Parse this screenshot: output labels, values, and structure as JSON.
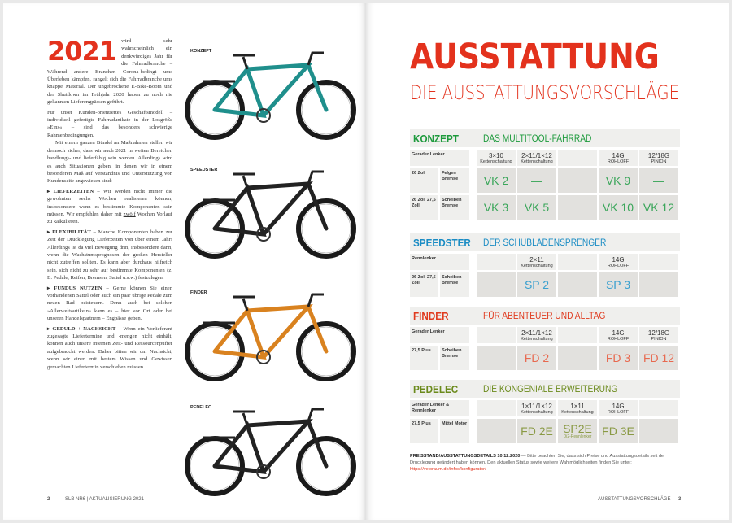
{
  "left": {
    "year": "2021",
    "paragraphs": [
      "wird sehr wahrscheinlich ein denkwürdiges Jahr für die Fahrradbranche – Während andere Branchen Corona-bedingt ums Überleben kämpfen, rangelt sich die Fahrradbranche ums knappe Material. Der ungebrochene E-Bike-Boom und der Shutdown im Frühjahr 2020 haben zu noch nie gekannten Lieferengpässen geführt.",
      "Für unser Kunden-orientiertes Geschäftsmodell – individuell gefertigte Fahrradunikate in der Losgröße »Eins« – sind das besonders schwierige Rahmenbedingungen.",
      "Mit einem ganzen Bündel an Maßnahmen stellen wir dennoch sicher, dass wir auch 2021 in weiten Bereichen handlungs- und lieferfähig sein werden. Allerdings wird es auch Situationen geben, in denen wir in einem besonderen Maß auf Verständnis und Unterstützung von Kundenseite angewiesen sind:"
    ],
    "bullets": [
      {
        "head": "▸ LIEFERZEITEN",
        "text": " – Wir werden nicht immer die gewohnten sechs Wochen realisieren können, insbesondere wenn es bestimmte Komponenten sein müssen. Wir empfehlen daher mit ",
        "u": "zwölf",
        "after": " Wochen Vorlauf zu kalkulieren."
      },
      {
        "head": "▸ FLEXIBILITÄT",
        "text": " – Manche Komponenten haben zur Zeit der Drucklegung Lieferzeiten von über einem Jahr! Allerdings ist da viel Bewegung drin, insbesondere dann, wenn die Wachstumsprognosen der großen Hersteller nicht zutreffen sollten. Es kann aber durchaus hilfreich sein, sich nicht zu sehr auf bestimmte Komponenten (z. B. Pedale, Reifen, Bremsen, Sattel u.s.w.) festzulegen."
      },
      {
        "head": "▸ FUNDUS NUTZEN",
        "text": " – Gerne können Sie einen vorhandenen Sattel oder auch ein paar übrige Pedale zum neuen Rad beisteuern. Denn auch bei solchen »Allerweltsartikeln« kann es – hier vor Ort oder bei unseren Handelspartnern – Engpässe geben."
      },
      {
        "head": "▸ GEDULD + NACHSICHT",
        "text": " – Wenn ein Vorlieferant zugesagte Liefertermine und -mengen nicht einhält, können auch unsere internen Zeit- und Ressourcenpuffer aufgebraucht werden. Daher bitten wir um Nachsicht, wenn wir einen mit bestem Wissen und Gewissen gemachten Liefertermin verschieben müssen."
      }
    ],
    "bikes": [
      {
        "label": "KONZEPT",
        "color": "#1f8f8c"
      },
      {
        "label": "SPEEDSTER",
        "color": "#222222"
      },
      {
        "label": "FINDER",
        "color": "#d9821f"
      },
      {
        "label": "PEDELEC",
        "color": "#222222"
      }
    ],
    "footer_page": "2",
    "footer_text": "SLB NR6 | AKTUALISIERUNG 2021"
  },
  "right": {
    "title": "AUSSTATTUNG",
    "subtitle": "DIE AUSSTATTUNGSVORSCHLÄGE",
    "sections": [
      {
        "name": "KONZEPT",
        "tagline": "DAS MULTITOOL-FAHRRAD",
        "color": "#1d9a3c",
        "code_color": "#3aa65a",
        "header": {
          "label": "Gerader Lenker",
          "cols": [
            [
              "3×10",
              "Kettenschaltung"
            ],
            [
              "2×11/1×12",
              "Kettenschaltung"
            ],
            [
              "",
              ""
            ],
            [
              "14G",
              "ROHLOFF"
            ],
            [
              "12/18G",
              "PINION"
            ]
          ]
        },
        "rows": [
          {
            "a": "26 Zoll",
            "b": "Felgen Bremse",
            "cells": [
              "VK 2",
              "—",
              "",
              "VK 9",
              "—"
            ]
          },
          {
            "a": "26 Zoll 27,5 Zoll",
            "b": "Scheiben Bremse",
            "cells": [
              "VK 3",
              "VK 5",
              "",
              "VK 10",
              "VK 12"
            ]
          }
        ]
      },
      {
        "name": "SPEEDSTER",
        "tagline": "DER SCHUBLADENSPRENGER",
        "color": "#1a8cc4",
        "code_color": "#3aa0cf",
        "header": {
          "label": "Rennlenker",
          "cols": [
            [
              "",
              ""
            ],
            [
              "2×11",
              "Kettenschaltung"
            ],
            [
              "",
              ""
            ],
            [
              "14G",
              "ROHLOFF"
            ],
            [
              "",
              ""
            ]
          ]
        },
        "rows": [
          {
            "a": "26 Zoll 27,5 Zoll",
            "b": "Scheiben Bremse",
            "cells": [
              "",
              "SP 2",
              "",
              "SP 3",
              ""
            ]
          }
        ]
      },
      {
        "name": "FINDER",
        "tagline": "FÜR ABENTEUER UND ALLTAG",
        "color": "#e03a1e",
        "code_color": "#e8694f",
        "header": {
          "label": "Gerader Lenker",
          "cols": [
            [
              "",
              ""
            ],
            [
              "2×11/1×12",
              "Kettenschaltung"
            ],
            [
              "",
              ""
            ],
            [
              "14G",
              "ROHLOFF"
            ],
            [
              "12/18G",
              "PINION"
            ]
          ]
        },
        "rows": [
          {
            "a": "27,5 Plus",
            "b": "Scheiben Bremse",
            "cells": [
              "",
              "FD 2",
              "",
              "FD 3",
              "FD 12"
            ]
          }
        ]
      },
      {
        "name": "PEDELEC",
        "tagline": "DIE KONGENIALE ERWEITERUNG",
        "color": "#6b8a1c",
        "code_color": "#8a9a45",
        "header": {
          "label": "Gerader Lenker & Rennlenker",
          "cols": [
            [
              "",
              ""
            ],
            [
              "1×11/1×12",
              "Kettenschaltung"
            ],
            [
              "1×11",
              "Kettenschaltung"
            ],
            [
              "14G",
              "ROHLOFF"
            ],
            [
              "",
              ""
            ]
          ]
        },
        "rows": [
          {
            "a": "27,5 Plus",
            "b": "Mittel Motor",
            "cells": [
              "",
              "FD 2E",
              "SP2E",
              "FD 3E",
              ""
            ],
            "cell_note": "Di2-Rennlenker"
          }
        ]
      }
    ],
    "note_head": "PREISSTAND/AUSSTATTUNGSDETAILS 10.12.2020",
    "note_text": " — Bitte beachten Sie, dass sich Preise und Ausstattungsdetails seit der Drucklegung geändert haben können. Den aktuellen Status sowie weitere Wahlmöglichkeiten finden Sie unter:",
    "note_link": "https://veloraum.de/infos/konfigurator/",
    "footer_text": "AUSSTATTUNGSVORSCHLÄGE",
    "footer_page": "3"
  }
}
